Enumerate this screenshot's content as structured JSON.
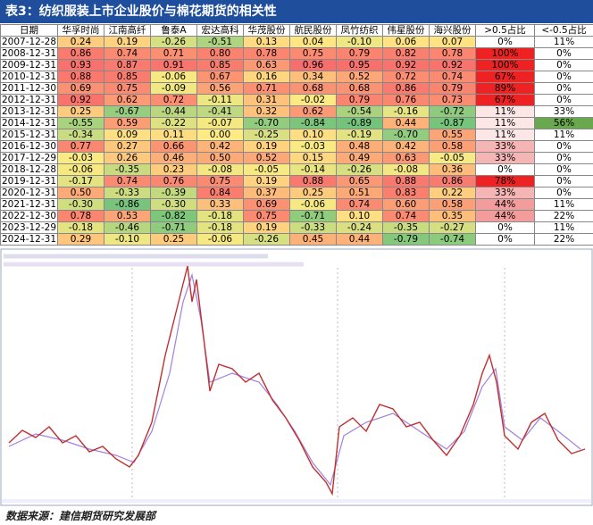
{
  "header": {
    "title": "表3：纺织服装上市企业股价与棉花期货的相关性"
  },
  "table": {
    "columns": [
      "日期",
      "华孚时尚",
      "江南高纤",
      "鲁泰A",
      "宏达高科",
      "华茂股份",
      "航民股份",
      "凤竹纺织",
      "伟星股份",
      "海兴股份",
      ">0.5占比",
      "<-0.5占比"
    ],
    "rows": [
      [
        "2007-12-28",
        "0.24",
        "0.19",
        "-0.26",
        "-0.51",
        "0.13",
        "0.04",
        "-0.10",
        "0.06",
        "0.07",
        "0%",
        "11%"
      ],
      [
        "2008-12-31",
        "0.86",
        "0.74",
        "0.71",
        "0.80",
        "0.78",
        "0.75",
        "0.79",
        "0.82",
        "0.78",
        "100%",
        "0%"
      ],
      [
        "2009-12-31",
        "0.93",
        "0.87",
        "0.91",
        "0.85",
        "0.63",
        "0.96",
        "0.95",
        "0.92",
        "0.92",
        "100%",
        "0%"
      ],
      [
        "2010-12-31",
        "0.88",
        "0.85",
        "-0.06",
        "0.67",
        "0.16",
        "0.34",
        "0.52",
        "0.72",
        "0.74",
        "67%",
        "0%"
      ],
      [
        "2011-12-30",
        "0.69",
        "0.75",
        "-0.09",
        "0.56",
        "0.71",
        "0.68",
        "0.68",
        "0.86",
        "0.79",
        "89%",
        "0%"
      ],
      [
        "2012-12-31",
        "0.92",
        "0.62",
        "0.72",
        "-0.11",
        "0.31",
        "-0.02",
        "0.79",
        "0.76",
        "0.73",
        "67%",
        "0%"
      ],
      [
        "2013-12-31",
        "0.25",
        "-0.67",
        "-0.44",
        "-0.41",
        "0.32",
        "0.62",
        "-0.54",
        "-0.16",
        "-0.72",
        "11%",
        "33%"
      ],
      [
        "2014-12-31",
        "-0.55",
        "0.59",
        "-0.22",
        "-0.07",
        "-0.70",
        "-0.84",
        "-0.89",
        "0.44",
        "-0.87",
        "11%",
        "56%"
      ],
      [
        "2015-12-31",
        "-0.34",
        "0.09",
        "0.11",
        "0.00",
        "-0.25",
        "0.10",
        "-0.19",
        "-0.70",
        "0.55",
        "11%",
        "11%"
      ],
      [
        "2016-12-30",
        "0.77",
        "0.27",
        "0.66",
        "0.42",
        "0.19",
        "-0.03",
        "0.48",
        "0.42",
        "0.58",
        "33%",
        "0%"
      ],
      [
        "2017-12-29",
        "-0.03",
        "0.26",
        "0.46",
        "0.50",
        "0.52",
        "0.15",
        "0.49",
        "0.63",
        "-0.05",
        "33%",
        "0%"
      ],
      [
        "2018-12-28",
        "-0.06",
        "-0.35",
        "0.23",
        "-0.08",
        "-0.05",
        "-0.14",
        "-0.26",
        "-0.08",
        "0.36",
        "0%",
        "0%"
      ],
      [
        "2019-12-31",
        "-0.17",
        "0.74",
        "0.76",
        "0.75",
        "0.19",
        "0.88",
        "0.65",
        "0.88",
        "0.86",
        "78%",
        "0%"
      ],
      [
        "2020-12-31",
        "0.50",
        "-0.33",
        "-0.39",
        "0.84",
        "0.37",
        "0.25",
        "0.51",
        "0.83",
        "0.22",
        "33%",
        "0%"
      ],
      [
        "2021-12-31",
        "-0.30",
        "-0.86",
        "-0.30",
        "0.33",
        "0.69",
        "-0.06",
        "0.74",
        "0.60",
        "0.58",
        "44%",
        "11%"
      ],
      [
        "2022-12-30",
        "0.78",
        "0.53",
        "-0.82",
        "-0.18",
        "0.75",
        "-0.71",
        "0.10",
        "0.74",
        "0.35",
        "44%",
        "22%"
      ],
      [
        "2023-12-29",
        "-0.18",
        "-0.46",
        "-0.71",
        "-0.18",
        "0.19",
        "-0.33",
        "-0.24",
        "-0.35",
        "-0.27",
        "0%",
        "11%"
      ],
      [
        "2024-12-31",
        "0.29",
        "-0.10",
        "0.25",
        "-0.06",
        "-0.26",
        "0.45",
        "0.44",
        "-0.79",
        "-0.74",
        "0%",
        "22%"
      ]
    ]
  },
  "footer": {
    "source": "数据来源：建信期货研究发展部"
  }
}
